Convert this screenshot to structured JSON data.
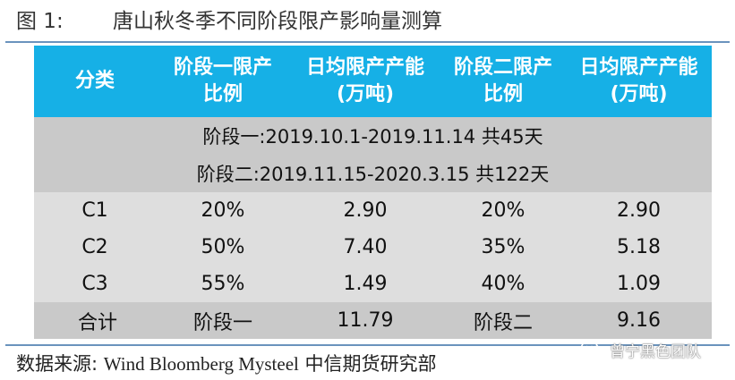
{
  "figure": {
    "label": "图 1:",
    "title": "唐山秋冬季不同阶段限产影响量测算"
  },
  "table": {
    "headers": [
      {
        "lines": [
          "分类"
        ]
      },
      {
        "lines": [
          "阶段一限产",
          "比例"
        ]
      },
      {
        "lines": [
          "日均限产产能",
          "(万吨)"
        ]
      },
      {
        "lines": [
          "阶段二限产",
          "比例"
        ]
      },
      {
        "lines": [
          "日均限产产能",
          "(万吨)"
        ]
      }
    ],
    "phases": [
      "阶段一:2019.10.1-2019.11.14  共45天",
      "阶段二:2019.11.15-2020.3.15  共122天"
    ],
    "rows": [
      [
        "C1",
        "20%",
        "2.90",
        "20%",
        "2.90"
      ],
      [
        "C2",
        "50%",
        "7.40",
        "35%",
        "5.18"
      ],
      [
        "C3",
        "55%",
        "1.49",
        "40%",
        "1.09"
      ]
    ],
    "total": [
      "合计",
      "阶段一",
      "11.79",
      "阶段二",
      "9.16"
    ]
  },
  "source": {
    "prefix": "数据来源:",
    "sources": "Wind Bloomberg Mysteel",
    "org": "中信期货研究部"
  },
  "watermark": {
    "icon": "wechat-icon",
    "text": "曾宁黑色团队"
  }
}
